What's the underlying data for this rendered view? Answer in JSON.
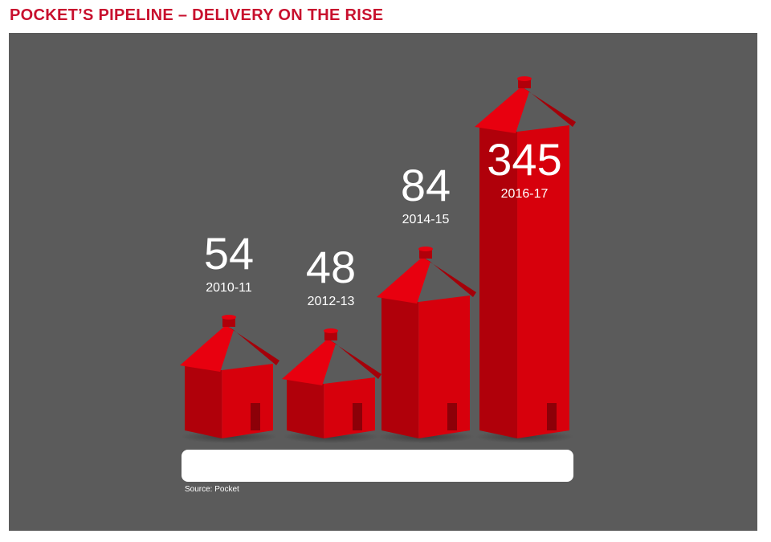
{
  "header": {
    "title": "POCKET’S PIPELINE – DELIVERY ON THE RISE"
  },
  "footer": {
    "source": "Source: Pocket"
  },
  "colors": {
    "title": "#c8102e",
    "panel": "#5b5b5b",
    "house_front": "#d7000c",
    "house_side": "#b0000a",
    "roof": "#e8000f",
    "roof_dark": "#a50009",
    "label": "#ffffff"
  },
  "chart_data": {
    "type": "bar",
    "title": "POCKET’S PIPELINE – DELIVERY ON THE RISE",
    "categories": [
      "2010-11",
      "2012-13",
      "2014-15",
      "2016-17"
    ],
    "values": [
      54,
      48,
      84,
      345
    ],
    "xlabel": "",
    "ylabel": "",
    "grid": false,
    "legend": "none",
    "mark_style": "house-shaped bars"
  }
}
